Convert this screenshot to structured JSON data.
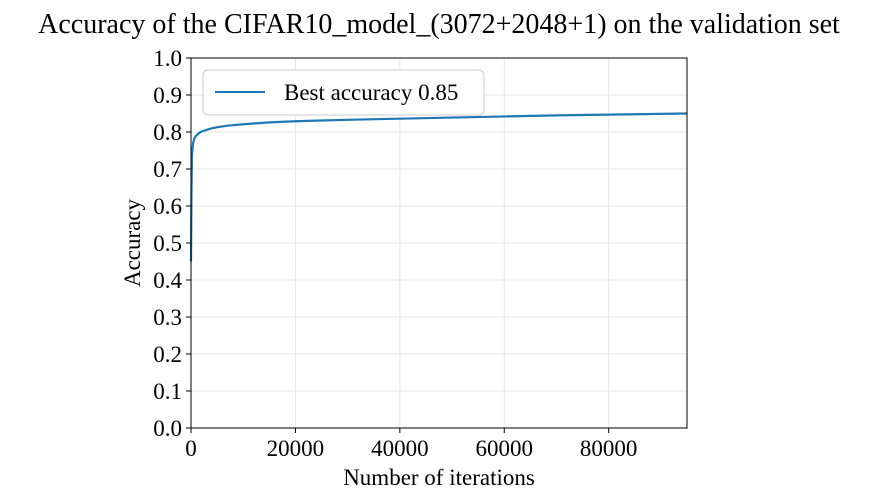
{
  "chart_data": {
    "type": "line",
    "title": "Accuracy of the CIFAR10_model_(3072+2048+1) on the validation set",
    "xlabel": "Number of iterations",
    "ylabel": "Accuracy",
    "xlim": [
      0,
      95000
    ],
    "ylim": [
      0.0,
      1.0
    ],
    "grid": true,
    "legend_placement": "upper-left",
    "x_ticks": [
      0,
      20000,
      40000,
      60000,
      80000
    ],
    "x_tick_labels": [
      "0",
      "20000",
      "40000",
      "60000",
      "80000"
    ],
    "y_ticks": [
      0.0,
      0.1,
      0.2,
      0.3,
      0.4,
      0.5,
      0.6,
      0.7,
      0.8,
      0.9,
      1.0
    ],
    "y_tick_labels": [
      "0.0",
      "0.1",
      "0.2",
      "0.3",
      "0.4",
      "0.5",
      "0.6",
      "0.7",
      "0.8",
      "0.9",
      "1.0"
    ],
    "series": [
      {
        "name": "Best accuracy 0.85",
        "color": "#1f77b4",
        "x": [
          0,
          100,
          200,
          400,
          700,
          1000,
          1500,
          2000,
          3000,
          4000,
          5000,
          7000,
          10000,
          15000,
          20000,
          25000,
          30000,
          40000,
          50000,
          60000,
          70000,
          80000,
          90000,
          95000
        ],
        "y": [
          0.45,
          0.65,
          0.74,
          0.77,
          0.785,
          0.79,
          0.797,
          0.801,
          0.806,
          0.81,
          0.813,
          0.817,
          0.821,
          0.826,
          0.829,
          0.831,
          0.833,
          0.836,
          0.839,
          0.842,
          0.845,
          0.847,
          0.849,
          0.85
        ]
      }
    ]
  }
}
